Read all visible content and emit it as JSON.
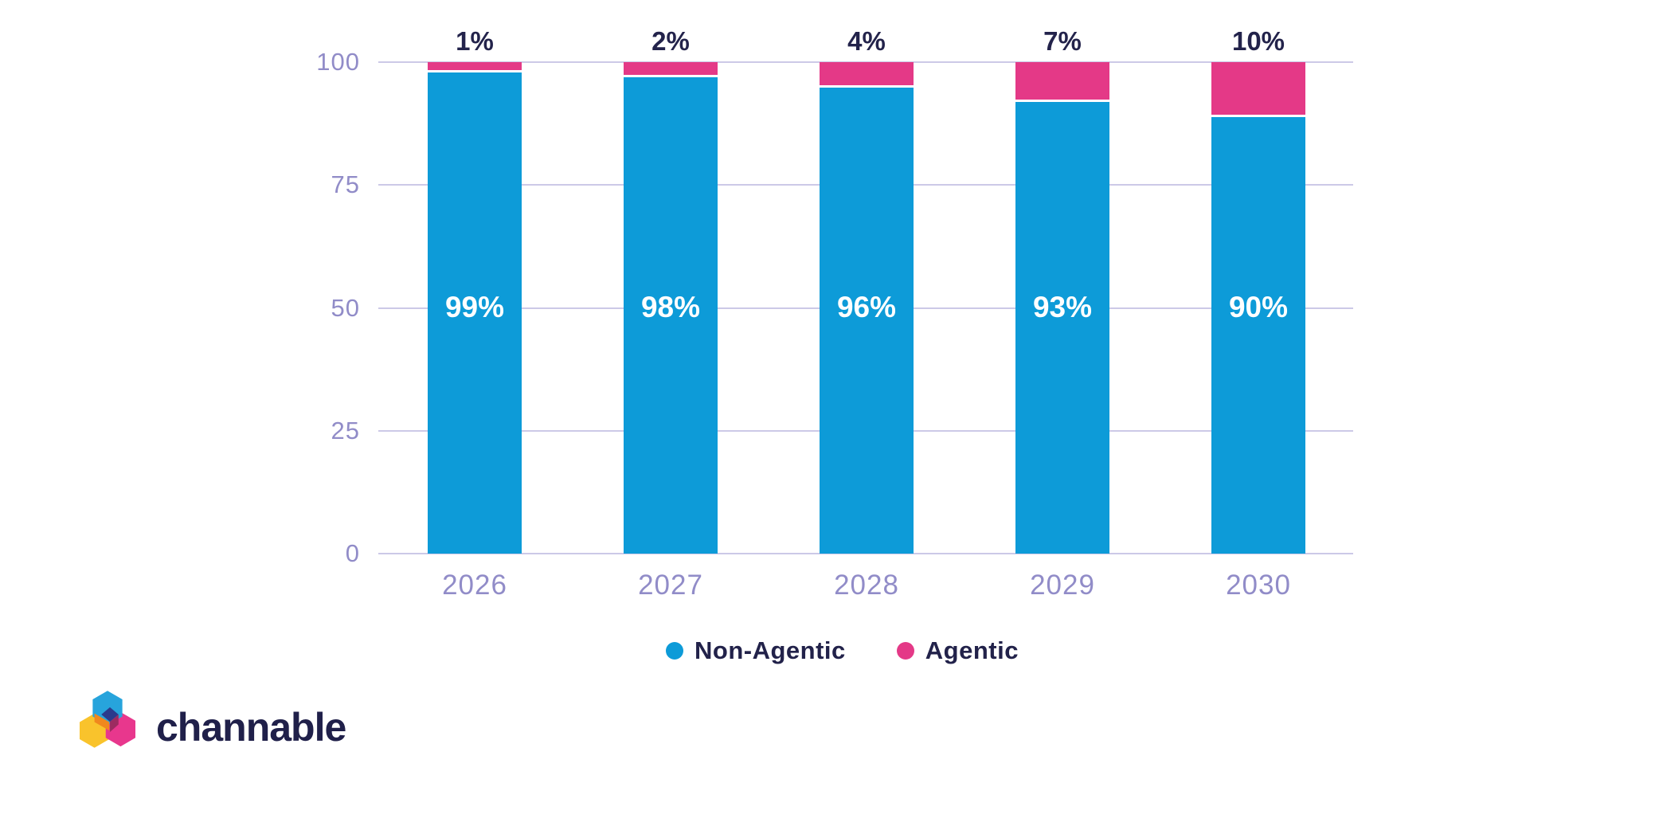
{
  "chart_data": {
    "type": "bar",
    "stacked": true,
    "title": "",
    "xlabel": "",
    "ylabel": "",
    "categories": [
      "2026",
      "2027",
      "2028",
      "2029",
      "2030"
    ],
    "series": [
      {
        "name": "Non-Agentic",
        "color": "#0D9BD8",
        "values": [
          99,
          98,
          96,
          93,
          90
        ],
        "value_labels": [
          "99%",
          "98%",
          "96%",
          "93%",
          "90%"
        ]
      },
      {
        "name": "Agentic",
        "color": "#E43987",
        "values": [
          1,
          2,
          4,
          7,
          10
        ],
        "value_labels": [
          "1%",
          "2%",
          "4%",
          "7%",
          "10%"
        ]
      }
    ],
    "top_labels": [
      "1%",
      "2%",
      "4%",
      "7%",
      "10%"
    ],
    "ylim": [
      0,
      100
    ],
    "yticks": [
      0,
      25,
      50,
      75,
      100
    ],
    "ytick_labels": [
      "0",
      "25",
      "50",
      "75",
      "100"
    ],
    "grid": true,
    "legend_position": "bottom"
  },
  "legend": {
    "items": [
      {
        "label": "Non-Agentic",
        "color": "#0D9BD8"
      },
      {
        "label": "Agentic",
        "color": "#E43987"
      }
    ]
  },
  "branding": {
    "wordmark": "channable"
  },
  "colors": {
    "non_agentic_blue": "#0D9BD8",
    "agentic_pink": "#E43987",
    "axis_text": "#918CC8",
    "gridline": "#CCC9E7",
    "label_navy": "#23234B",
    "bar_inner_label": "#FFFFFF"
  }
}
